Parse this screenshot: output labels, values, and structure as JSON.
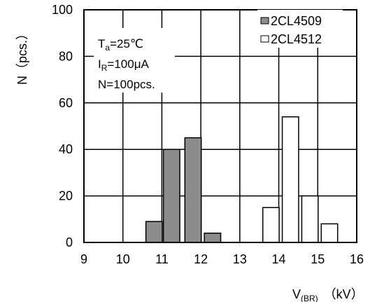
{
  "chart_data": {
    "type": "bar",
    "xlabel_main": "V",
    "xlabel_sub": "(BR)",
    "xlabel_unit": "（kV）",
    "ylabel": "N（pcs.）",
    "xlim": [
      9,
      16
    ],
    "ylim": [
      0,
      100
    ],
    "x_ticks": [
      9,
      10,
      11,
      12,
      13,
      14,
      15,
      16
    ],
    "y_ticks": [
      0,
      20,
      40,
      60,
      80,
      100
    ],
    "grid": true,
    "legend_position": "top-right",
    "annotations": {
      "ta_main": "T",
      "ta_sub": "a",
      "ta_rest": "=25℃",
      "ir_main": "I",
      "ir_sub": "R",
      "ir_rest": "=100μA",
      "n_line": "N=100pcs."
    },
    "series": [
      {
        "name": "2CL4509",
        "fill": "#8c8c8c",
        "bars": [
          {
            "x": 10.8,
            "value": 9
          },
          {
            "x": 11.25,
            "value": 40
          },
          {
            "x": 11.8,
            "value": 45
          },
          {
            "x": 12.3,
            "value": 4
          }
        ]
      },
      {
        "name": "2CL4512",
        "fill": "#ffffff",
        "bars": [
          {
            "x": 13.8,
            "value": 15
          },
          {
            "x": 14.3,
            "value": 54
          },
          {
            "x": 14.8,
            "value": 20
          },
          {
            "x": 15.3,
            "value": 8
          }
        ]
      }
    ]
  }
}
